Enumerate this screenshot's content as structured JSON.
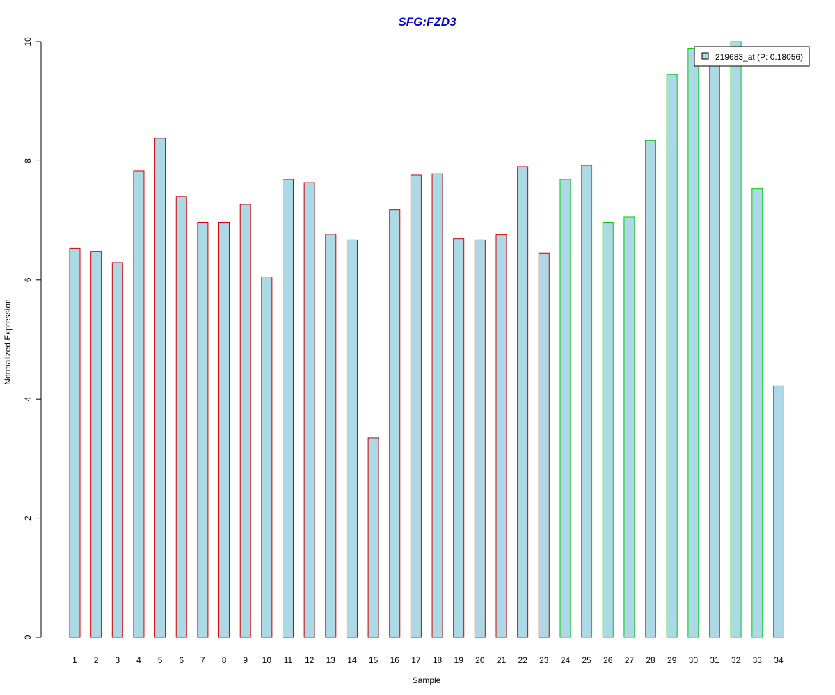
{
  "chart_data": {
    "type": "bar",
    "title": "SFG:FZD3",
    "xlabel": "Sample",
    "ylabel": "Normalized Expression",
    "categories": [
      "1",
      "2",
      "3",
      "4",
      "5",
      "6",
      "7",
      "8",
      "9",
      "10",
      "11",
      "12",
      "13",
      "14",
      "15",
      "16",
      "17",
      "18",
      "19",
      "20",
      "21",
      "22",
      "23",
      "24",
      "25",
      "26",
      "27",
      "28",
      "29",
      "30",
      "31",
      "32",
      "33",
      "34"
    ],
    "series": [
      {
        "name": "219683_at (P: 0.18056)",
        "values": [
          6.53,
          6.48,
          6.29,
          7.83,
          8.38,
          7.4,
          6.96,
          6.96,
          7.27,
          6.05,
          7.69,
          7.63,
          6.77,
          6.67,
          3.35,
          7.18,
          7.76,
          7.78,
          6.69,
          6.67,
          6.76,
          7.9,
          6.45,
          7.69,
          7.92,
          6.96,
          7.06,
          8.34,
          9.45,
          9.89,
          9.7,
          10.0,
          7.53,
          4.22
        ]
      }
    ],
    "group_colors": [
      "#cc0000",
      "#cc0000",
      "#cc0000",
      "#cc0000",
      "#cc0000",
      "#cc0000",
      "#cc0000",
      "#cc0000",
      "#cc0000",
      "#cc0000",
      "#cc0000",
      "#cc0000",
      "#cc0000",
      "#cc0000",
      "#cc0000",
      "#cc0000",
      "#cc0000",
      "#cc0000",
      "#cc0000",
      "#cc0000",
      "#cc0000",
      "#cc0000",
      "#cc0000",
      "#00cc00",
      "#00cc00",
      "#00cc00",
      "#00cc00",
      "#00cc00",
      "#00cc00",
      "#00cc00",
      "#00cc00",
      "#00cc00",
      "#00cc00",
      "#00cc00"
    ],
    "bar_fill": "#add8e6",
    "title_color": "#0000cc",
    "ylim": [
      0,
      10
    ],
    "yticks": [
      0,
      2,
      4,
      6,
      8,
      10
    ],
    "legend_position": "top-right",
    "grid": false
  }
}
